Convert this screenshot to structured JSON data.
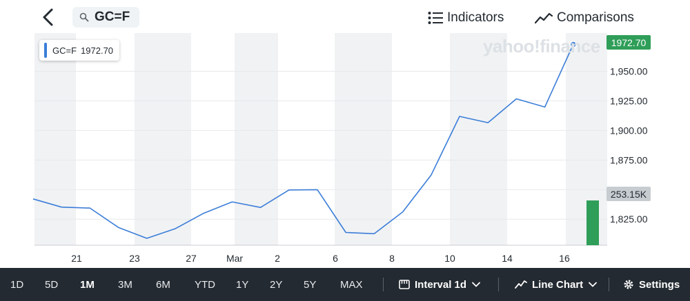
{
  "header": {
    "ticker": "GC=F",
    "indicators_label": "Indicators",
    "comparisons_label": "Comparisons",
    "icons": {
      "back": "chevron-left-icon",
      "search": "search-icon",
      "indicators": "list-icon",
      "comparisons": "trend-line-icon"
    }
  },
  "chart": {
    "watermark": "yahoo!finance",
    "legend": {
      "symbol": "GC=F",
      "value": "1972.70"
    },
    "price_label": "1972.70",
    "volume_label": "253.15K"
  },
  "chart_data": {
    "type": "line",
    "series_name": "GC=F",
    "x": [
      "Feb 20",
      "Feb 21",
      "Feb 22",
      "Feb 23",
      "Feb 24",
      "Feb 27",
      "Feb 28",
      "Mar 1",
      "Mar 2",
      "Mar 3",
      "Mar 6",
      "Mar 7",
      "Mar 8",
      "Mar 9",
      "Mar 10",
      "Mar 13",
      "Mar 14",
      "Mar 15",
      "Mar 16",
      "Mar 17"
    ],
    "y": [
      1842.1,
      1835.2,
      1834.4,
      1818.0,
      1808.8,
      1817.0,
      1830.0,
      1839.6,
      1834.9,
      1849.7,
      1849.9,
      1813.8,
      1812.7,
      1831.1,
      1862.3,
      1911.9,
      1906.6,
      1926.7,
      1919.8,
      1972.7
    ],
    "x_tick_labels": [
      "21",
      "23",
      "27",
      "Mar",
      "2",
      "6",
      "8",
      "10",
      "14",
      "16"
    ],
    "y_tick_labels": [
      "1,825.00",
      "1,850.00",
      "1,875.00",
      "1,900.00",
      "1,925.00",
      "1,950.00"
    ],
    "y_ticks": [
      1825,
      1850,
      1875,
      1900,
      1925,
      1950
    ],
    "ylim": [
      1803,
      1980
    ],
    "last_volume": 253.15,
    "volume_unit": "K",
    "line_color": "#3b7dd8",
    "volume_color": "#2f9e58",
    "price_flag_color": "#2f9e58",
    "grid": true
  },
  "bottom_bar": {
    "ranges": [
      {
        "label": "1D",
        "active": false
      },
      {
        "label": "5D",
        "active": false
      },
      {
        "label": "1M",
        "active": true
      },
      {
        "label": "3M",
        "active": false
      },
      {
        "label": "6M",
        "active": false
      },
      {
        "label": "YTD",
        "active": false
      },
      {
        "label": "1Y",
        "active": false
      },
      {
        "label": "2Y",
        "active": false
      },
      {
        "label": "5Y",
        "active": false
      },
      {
        "label": "MAX",
        "active": false
      }
    ],
    "interval_label": "Interval 1d",
    "chart_type_label": "Line Chart",
    "settings_label": "Settings",
    "icons": {
      "interval": "ruler-icon",
      "chart_type": "line-chart-icon",
      "settings": "gear-icon",
      "dropdown": "chevron-down-icon"
    }
  }
}
